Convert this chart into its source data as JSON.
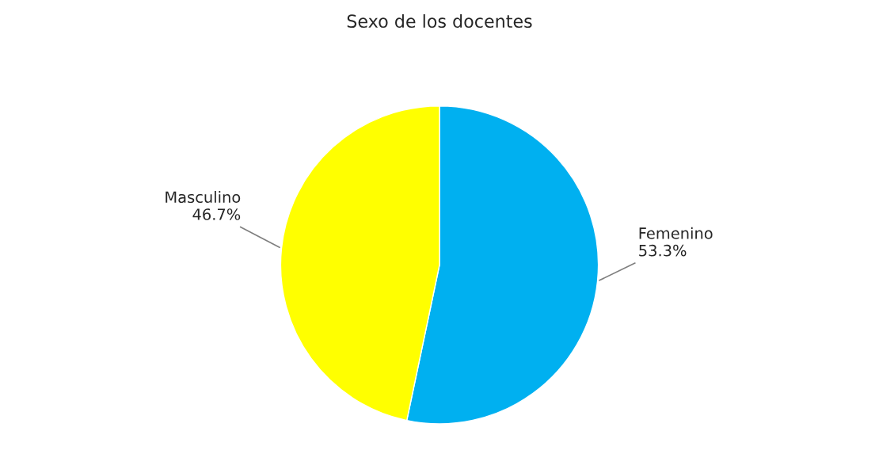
{
  "chart_data": {
    "type": "pie",
    "title": "Sexo de los docentes",
    "categories": [
      "Femenino",
      "Masculino"
    ],
    "values": [
      53.3,
      46.7
    ],
    "colors": [
      "#00b0f0",
      "#ffff00"
    ],
    "value_labels": [
      "53.3%",
      "46.7%"
    ],
    "legend": false
  }
}
